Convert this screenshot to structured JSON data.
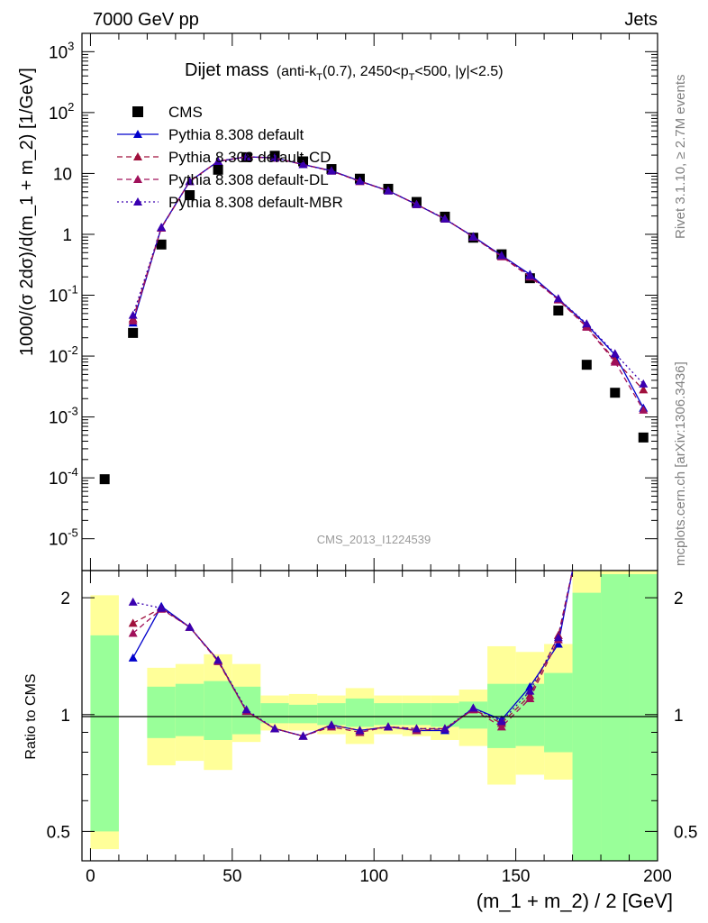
{
  "header": {
    "left": "7000 GeV pp",
    "right": "Jets"
  },
  "title": {
    "main": "Dijet mass",
    "sub_prefix": "(anti-k",
    "sub_k_sub": "T",
    "sub_mid": "(0.7), 2450<p",
    "sub_pt_sub": "T",
    "sub_suffix": "<500, |y|<2.5)"
  },
  "side_labels": {
    "rivet": "Rivet 3.1.10, ≥ 2.7M events",
    "mcplots": "mcplots.cern.ch [arXiv:1306.3436]"
  },
  "watermark": "CMS_2013_I1224539",
  "colors": {
    "cms": "#000000",
    "default": "#0000cc",
    "cd": "#a0103c",
    "dl": "#a0105a",
    "mbr": "#3a00b0",
    "band_inner": "#99ff99",
    "band_outer": "#ffff99"
  },
  "chart_data": [
    {
      "type": "scatter",
      "panel": "main",
      "xlabel": "(m_1 + m_2) / 2 [GeV]",
      "ylabel": "1000/(σ 2dσ)/d(m_1 + m_2) [1/GeV]",
      "xlim": [
        -3,
        200
      ],
      "ylim": [
        3e-06,
        2000
      ],
      "yscale": "log",
      "yticks": [
        {
          "exp": "-5",
          "value": 1e-05
        },
        {
          "exp": "-4",
          "value": 0.0001
        },
        {
          "exp": "-3",
          "value": 0.001
        },
        {
          "exp": "-2",
          "value": 0.01
        },
        {
          "exp": "-1",
          "value": 0.1
        },
        {
          "label": "1",
          "value": 1
        },
        {
          "label": "10",
          "value": 10
        },
        {
          "exp": "2",
          "value": 100
        },
        {
          "exp": "3",
          "value": 1000
        }
      ],
      "legend_position": "top-left",
      "series": [
        {
          "name": "CMS",
          "style": "square",
          "x": [
            5,
            15,
            25,
            35,
            45,
            55,
            65,
            75,
            85,
            95,
            105,
            115,
            125,
            135,
            145,
            155,
            165,
            175,
            185,
            195
          ],
          "values": [
            9.5e-05,
            0.024,
            0.68,
            4.4,
            11.5,
            18.5,
            19.5,
            15.8,
            11.8,
            8.2,
            5.6,
            3.4,
            1.95,
            0.88,
            0.47,
            0.19,
            0.056,
            0.0072,
            0.0025,
            0.00046
          ]
        },
        {
          "name": "Pythia 8.308 default",
          "style": "solid",
          "x": [
            15,
            25,
            35,
            45,
            55,
            65,
            75,
            85,
            95,
            105,
            115,
            125,
            135,
            145,
            155,
            165,
            175,
            185,
            195
          ],
          "values": [
            0.035,
            1.3,
            7.4,
            15.8,
            18.8,
            18.0,
            14.0,
            11.1,
            7.5,
            5.2,
            3.1,
            1.78,
            0.92,
            0.45,
            0.22,
            0.087,
            0.033,
            0.0105,
            0.0014
          ]
        },
        {
          "name": "Pythia 8.308 default-CD",
          "style": "dashed",
          "x": [
            15,
            25,
            35,
            45,
            55,
            65,
            75,
            85,
            95,
            105,
            115,
            125,
            135,
            145,
            155,
            165,
            175,
            185,
            195
          ],
          "values": [
            0.041,
            1.28,
            7.4,
            15.8,
            18.8,
            17.9,
            14.0,
            11.0,
            7.4,
            5.2,
            3.1,
            1.8,
            0.9,
            0.44,
            0.21,
            0.085,
            0.031,
            0.0085,
            0.0028
          ]
        },
        {
          "name": "Pythia 8.308 default-DL",
          "style": "dashed",
          "x": [
            15,
            25,
            35,
            45,
            55,
            65,
            75,
            85,
            95,
            105,
            115,
            125,
            135,
            145,
            155,
            165,
            175,
            185,
            195
          ],
          "values": [
            0.038,
            1.27,
            7.4,
            15.8,
            18.8,
            17.9,
            14.0,
            11.0,
            7.4,
            5.2,
            3.1,
            1.8,
            0.9,
            0.43,
            0.2,
            0.084,
            0.03,
            0.008,
            0.0013
          ]
        },
        {
          "name": "Pythia 8.308 default-MBR",
          "style": "dotted",
          "x": [
            15,
            25,
            35,
            45,
            55,
            65,
            75,
            85,
            95,
            105,
            115,
            125,
            135,
            145,
            155,
            165,
            175,
            185,
            195
          ],
          "values": [
            0.047,
            1.3,
            7.4,
            15.8,
            18.8,
            18.0,
            14.0,
            11.0,
            7.5,
            5.2,
            3.1,
            1.8,
            0.91,
            0.45,
            0.21,
            0.088,
            0.034,
            0.011,
            0.0035
          ]
        }
      ]
    },
    {
      "type": "line",
      "panel": "ratio",
      "xlabel": "(m_1 + m_2) / 2 [GeV]",
      "ylabel": "Ratio to CMS",
      "xlim": [
        -3,
        200
      ],
      "ylim": [
        0.42,
        2.35
      ],
      "yscale": "log",
      "yticks": [
        {
          "label": "0.5",
          "value": 0.5
        },
        {
          "label": "1",
          "value": 1
        },
        {
          "label": "2",
          "value": 2
        }
      ],
      "xticks": [
        {
          "label": "0",
          "value": 0
        },
        {
          "label": "50",
          "value": 50
        },
        {
          "label": "100",
          "value": 100
        },
        {
          "label": "150",
          "value": 150
        },
        {
          "label": "200",
          "value": 200
        }
      ],
      "bands": {
        "x_edges": [
          0,
          10,
          20,
          30,
          40,
          50,
          60,
          70,
          80,
          90,
          100,
          110,
          120,
          130,
          140,
          150,
          160,
          170,
          180,
          190,
          200
        ],
        "inner_lo": [
          0.5,
          0.3,
          0.87,
          0.88,
          0.86,
          0.89,
          0.95,
          0.95,
          0.94,
          0.93,
          0.94,
          0.94,
          0.93,
          0.92,
          0.82,
          0.83,
          0.8,
          0.1,
          0.1,
          0.1
        ],
        "inner_hi": [
          1.6,
          0.3,
          1.18,
          1.2,
          1.22,
          1.18,
          1.07,
          1.06,
          1.07,
          1.1,
          1.07,
          1.07,
          1.07,
          1.08,
          1.2,
          1.2,
          1.28,
          2.06,
          2.3,
          2.3
        ],
        "outer_lo": [
          0.45,
          0.3,
          0.74,
          0.76,
          0.72,
          0.85,
          0.91,
          0.91,
          0.89,
          0.84,
          0.89,
          0.88,
          0.86,
          0.83,
          0.66,
          0.7,
          0.68,
          0.52,
          0.42,
          0.42
        ],
        "outer_hi": [
          2.03,
          0.3,
          1.32,
          1.35,
          1.43,
          1.35,
          1.12,
          1.13,
          1.12,
          1.17,
          1.12,
          1.12,
          1.12,
          1.16,
          1.5,
          1.45,
          1.52,
          2.35,
          2.35,
          2.35
        ]
      },
      "series": [
        {
          "name": "Pythia 8.308 default",
          "style": "solid",
          "x": [
            15,
            25,
            35,
            45,
            55,
            65,
            75,
            85,
            95,
            105,
            115,
            125,
            135,
            145,
            155,
            165,
            170
          ],
          "values": [
            1.4,
            1.9,
            1.68,
            1.38,
            1.02,
            0.92,
            0.88,
            0.94,
            0.91,
            0.93,
            0.91,
            0.91,
            1.04,
            0.97,
            1.18,
            1.52,
            2.35
          ]
        },
        {
          "name": "Pythia 8.308 default-CD",
          "style": "dashed",
          "x": [
            15,
            25,
            35,
            45,
            55,
            65,
            75,
            85,
            95,
            105,
            115,
            125,
            135,
            145,
            155,
            165,
            170
          ],
          "values": [
            1.72,
            1.88,
            1.68,
            1.38,
            1.02,
            0.92,
            0.88,
            0.94,
            0.91,
            0.93,
            0.92,
            0.92,
            1.03,
            0.95,
            1.12,
            1.6,
            2.35
          ]
        },
        {
          "name": "Pythia 8.308 default-DL",
          "style": "dashed",
          "x": [
            15,
            25,
            35,
            45,
            55,
            65,
            75,
            85,
            95,
            105,
            115,
            125,
            135,
            145,
            155,
            165,
            170
          ],
          "values": [
            1.62,
            1.87,
            1.68,
            1.37,
            1.02,
            0.92,
            0.88,
            0.93,
            0.9,
            0.93,
            0.91,
            0.92,
            1.03,
            0.93,
            1.1,
            1.56,
            2.35
          ]
        },
        {
          "name": "Pythia 8.308 default-MBR",
          "style": "dotted",
          "x": [
            15,
            25,
            35,
            45,
            55,
            65,
            75,
            85,
            95,
            105,
            115,
            125,
            135,
            145,
            155,
            165,
            170
          ],
          "values": [
            1.95,
            1.88,
            1.68,
            1.38,
            1.03,
            0.92,
            0.88,
            0.94,
            0.91,
            0.93,
            0.92,
            0.92,
            1.04,
            0.96,
            1.15,
            1.58,
            2.35
          ]
        }
      ]
    }
  ]
}
